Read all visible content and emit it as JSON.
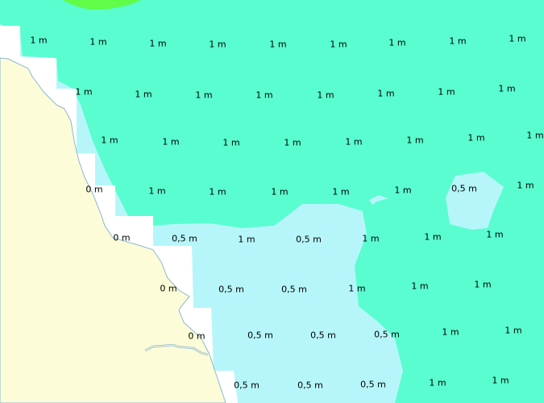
{
  "map": {
    "colors": {
      "deep_zone": "#5afdd0",
      "shallow_zone": "#b6f6fa",
      "land": "#fcfcd8",
      "unclassified": "#ffffff",
      "top_zone": "#60fc48",
      "coastline": "#8ab8d0"
    },
    "depth_labels": [
      [
        "1 m",
        "1 m",
        "1 m",
        "1 m",
        "1 m",
        "1 m",
        "1 m",
        "1 m",
        "1 m"
      ],
      [
        "1 m",
        "1 m",
        "1 m",
        "1 m",
        "1 m",
        "1 m",
        "1 m",
        "1 m"
      ],
      [
        "1 m",
        "1 m",
        "1 m",
        "1 m",
        "1 m",
        "1 m",
        "1 m",
        "1 m"
      ],
      [
        "0 m",
        "1 m",
        "1 m",
        "1 m",
        "1 m",
        "1 m",
        "0,5 m",
        "1 m"
      ],
      [
        "0 m",
        "0,5 m",
        "1 m",
        "0,5 m",
        "1 m",
        "1 m",
        "1 m"
      ],
      [
        "0 m",
        "0,5 m",
        "0,5 m",
        "1 m",
        "1 m",
        "1 m"
      ],
      [
        "0 m",
        "0,5 m",
        "0,5 m",
        "0,5 m",
        "1 m",
        "1 m"
      ],
      [
        "0,5 m",
        "0,5 m",
        "0,5 m",
        "1 m",
        "1 m"
      ]
    ]
  }
}
